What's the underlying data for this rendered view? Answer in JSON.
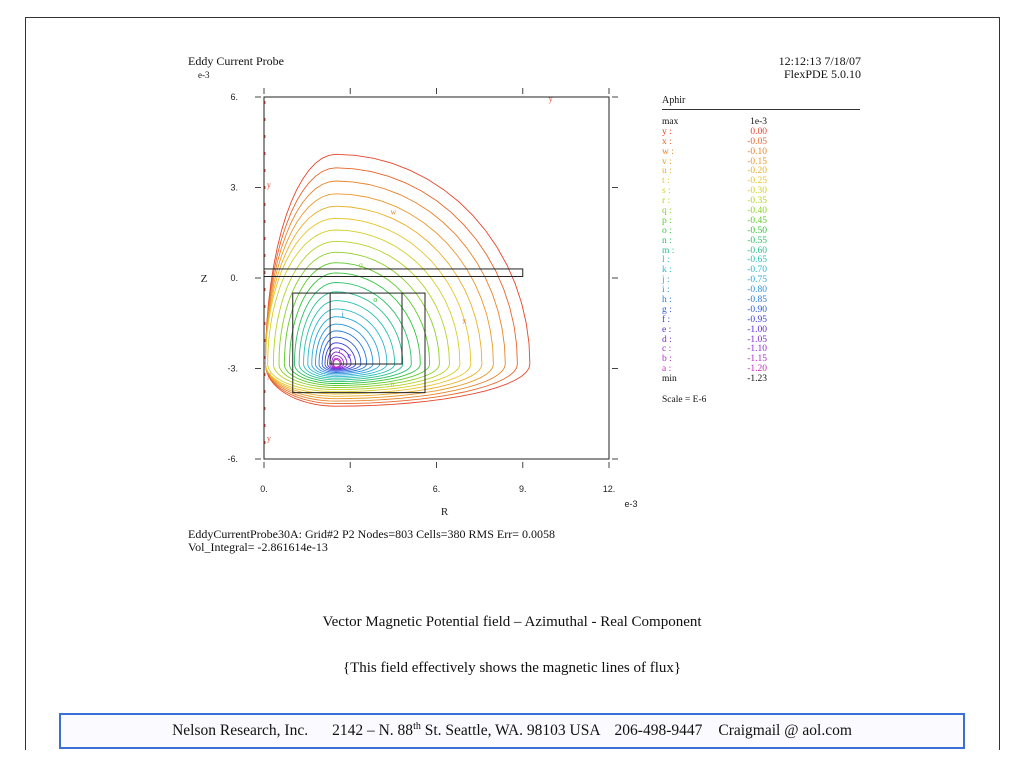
{
  "header": {
    "title": "Eddy Current Probe",
    "exponent": "e-3",
    "timestamp": "12:12:13 7/18/07",
    "version": "FlexPDE 5.0.10"
  },
  "chart_data": {
    "type": "contour",
    "title": "Eddy Current Probe",
    "xlabel": "R",
    "ylabel": "Z",
    "x_exponent": "e-3",
    "y_exponent": "e-3",
    "xlim": [
      0,
      12
    ],
    "ylim": [
      -6,
      6
    ],
    "x_ticks": [
      0,
      3,
      6,
      9,
      12
    ],
    "x_tick_labels": [
      "0.",
      "3.",
      "6.",
      "9.",
      "12."
    ],
    "y_ticks": [
      6,
      3,
      0,
      -3,
      -6
    ],
    "y_tick_labels": [
      "6.",
      "3.",
      "0.",
      "-3.",
      "-6."
    ],
    "variable": "Aphir",
    "levels": [
      {
        "key": "y :",
        "value": "0.00",
        "color": "#e8452a"
      },
      {
        "key": "x :",
        "value": "-0.05",
        "color": "#e8652a"
      },
      {
        "key": "w :",
        "value": "-0.10",
        "color": "#e8822a"
      },
      {
        "key": "v :",
        "value": "-0.15",
        "color": "#e89a2a"
      },
      {
        "key": "u :",
        "value": "-0.20",
        "color": "#e8b02a"
      },
      {
        "key": "t :",
        "value": "-0.25",
        "color": "#e8c42a"
      },
      {
        "key": "s :",
        "value": "-0.30",
        "color": "#d4cf2a"
      },
      {
        "key": "r :",
        "value": "-0.35",
        "color": "#b6d22a"
      },
      {
        "key": "q :",
        "value": "-0.40",
        "color": "#8ccf2a"
      },
      {
        "key": "p :",
        "value": "-0.45",
        "color": "#5fca2a"
      },
      {
        "key": "o :",
        "value": "-0.50",
        "color": "#34c43a"
      },
      {
        "key": "n :",
        "value": "-0.55",
        "color": "#2ac066"
      },
      {
        "key": "m :",
        "value": "-0.60",
        "color": "#2ac08e"
      },
      {
        "key": "l :",
        "value": "-0.65",
        "color": "#2ac0b2"
      },
      {
        "key": "k :",
        "value": "-0.70",
        "color": "#2ab8cc"
      },
      {
        "key": "j :",
        "value": "-0.75",
        "color": "#2aa8d8"
      },
      {
        "key": "i :",
        "value": "-0.80",
        "color": "#2a92dc"
      },
      {
        "key": "h :",
        "value": "-0.85",
        "color": "#2a78dc"
      },
      {
        "key": "g :",
        "value": "-0.90",
        "color": "#2a5cdc"
      },
      {
        "key": "f :",
        "value": "-0.95",
        "color": "#3a40dc"
      },
      {
        "key": "e :",
        "value": "-1.00",
        "color": "#5a2ad8"
      },
      {
        "key": "d :",
        "value": "-1.05",
        "color": "#7a2ad4"
      },
      {
        "key": "c :",
        "value": "-1.10",
        "color": "#962ad0"
      },
      {
        "key": "b :",
        "value": "-1.15",
        "color": "#b02ac8"
      },
      {
        "key": "a :",
        "value": "-1.20",
        "color": "#c82ac0"
      }
    ],
    "max_label": "max",
    "max_value": "1e-3",
    "min_label": "min",
    "min_value": "-1.23",
    "scale": "Scale = E-6",
    "regions": {
      "domain": {
        "r": [
          0,
          12
        ],
        "z": [
          -6,
          6
        ]
      },
      "plate": {
        "r": [
          0,
          9
        ],
        "z": [
          0.05,
          0.3
        ]
      },
      "coil_outer": {
        "r": [
          1,
          5.6
        ],
        "z": [
          -3.8,
          -0.5
        ]
      },
      "coil_inner": {
        "r": [
          2.3,
          4.8
        ],
        "z": [
          -2.85,
          -0.5
        ]
      }
    }
  },
  "run_info": {
    "line1": "EddyCurrentProbe30A:  Grid#2  P2  Nodes=803  Cells=380 RMS Err= 0.0058",
    "line2": "Vol_Integral= -2.861614e-13"
  },
  "captions": {
    "line1": "Vector Magnetic Potential field – Azimuthal - Real Component",
    "line2": "{This field effectively shows the magnetic lines of flux}"
  },
  "banner": {
    "company": "Nelson Research, Inc.",
    "address_pre": "2142 –  N. 88",
    "address_sup": "th",
    "address_post": " St. Seattle, WA. 98103   USA",
    "phone": "206-498-9447",
    "email": "Craigmail @ aol.com"
  }
}
